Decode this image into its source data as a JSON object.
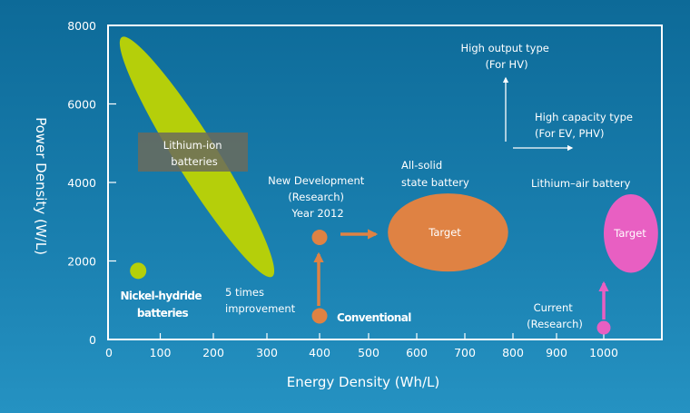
{
  "chart_data": {
    "type": "scatter",
    "xlabel": "Energy Density (Wh/L)",
    "ylabel": "Power Density (W/L)",
    "xlim": [
      0,
      1100
    ],
    "ylim": [
      0,
      8000
    ],
    "x_ticks": [
      "0",
      "100",
      "200",
      "300",
      "400",
      "500",
      "600",
      "700",
      "800",
      "900",
      "1000"
    ],
    "y_ticks": [
      "0",
      "2000",
      "4000",
      "6000",
      "8000"
    ],
    "grid": false,
    "colors": {
      "lithium_ion": "#b5cf0a",
      "nickel": "#b5cf0a",
      "solid_state": "#df8243",
      "lithium_air": "#e85fc2",
      "label_box": "#6b6b5c"
    },
    "regions": [
      {
        "name": "Lithium-ion batteries",
        "shape": "rotated-ellipse",
        "from": [
          25,
          7700
        ],
        "to": [
          310,
          1600
        ],
        "label_lines": [
          "Lithium-ion",
          "batteries"
        ]
      },
      {
        "name": "All-solid state battery target",
        "shape": "ellipse",
        "x_range": [
          540,
          790
        ],
        "y_range": [
          1730,
          3720
        ],
        "label": "Target",
        "title_lines": [
          "All-solid",
          "state battery"
        ]
      },
      {
        "name": "Lithium-air battery target",
        "shape": "ellipse",
        "x_range": [
          1000,
          1115
        ],
        "y_range": [
          1700,
          3700
        ],
        "label": "Target",
        "title": "Lithium–air battery"
      }
    ],
    "points": [
      {
        "name": "Nickel-hydride batteries",
        "x": 57,
        "y": 1750,
        "label_lines": [
          "Nickel-hydride",
          "batteries"
        ]
      },
      {
        "name": "Conventional",
        "x": 400,
        "y": 600,
        "label": "Conventional"
      },
      {
        "name": "New Development (Research) Year 2012",
        "x": 400,
        "y": 2600,
        "label_lines": [
          "New Development",
          "(Research)",
          "Year 2012"
        ]
      },
      {
        "name": "Current (Research)",
        "x": 1000,
        "y": 300,
        "label_lines": [
          "Current",
          "(Research)"
        ]
      }
    ],
    "annotations": {
      "improvement_lines": [
        "5 times",
        "improvement"
      ],
      "high_output_lines": [
        "High output type",
        "(For HV)"
      ],
      "high_capacity_lines": [
        "High capacity type",
        "(For EV, PHV)"
      ]
    }
  }
}
